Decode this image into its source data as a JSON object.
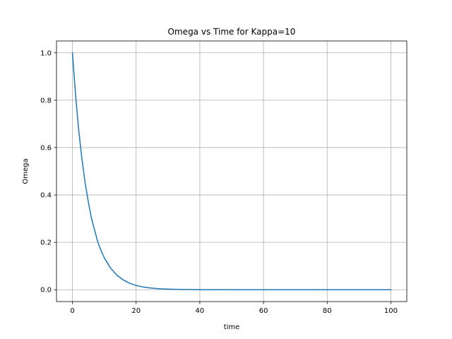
{
  "chart_data": {
    "type": "line",
    "title": "Omega vs Time for Kappa=10",
    "xlabel": "time",
    "ylabel": "Omega",
    "xlim": [
      -5,
      105
    ],
    "ylim": [
      -0.05,
      1.05
    ],
    "xticks": [
      0,
      20,
      40,
      60,
      80,
      100
    ],
    "yticks": [
      0.0,
      0.2,
      0.4,
      0.6,
      0.8,
      1.0
    ],
    "xtick_labels": [
      "0",
      "20",
      "40",
      "60",
      "80",
      "100"
    ],
    "ytick_labels": [
      "0.0",
      "0.2",
      "0.4",
      "0.6",
      "0.8",
      "1.0"
    ],
    "grid": true,
    "line_color": "#1f77b4",
    "grid_color": "#b0b0b0",
    "series": [
      {
        "x": [
          0,
          1,
          2,
          3,
          4,
          5,
          6,
          7,
          8,
          9,
          10,
          12,
          14,
          16,
          18,
          20,
          22,
          24,
          26,
          28,
          30,
          35,
          40,
          50,
          60,
          70,
          80,
          90,
          100
        ],
        "values": [
          1.0,
          0.82,
          0.67,
          0.55,
          0.45,
          0.37,
          0.3,
          0.25,
          0.2,
          0.165,
          0.135,
          0.091,
          0.061,
          0.041,
          0.027,
          0.018,
          0.012,
          0.008,
          0.0055,
          0.0037,
          0.0025,
          0.0009,
          0.0003,
          0.0,
          0.0,
          0.0,
          0.0,
          0.0,
          0.0
        ]
      }
    ]
  }
}
